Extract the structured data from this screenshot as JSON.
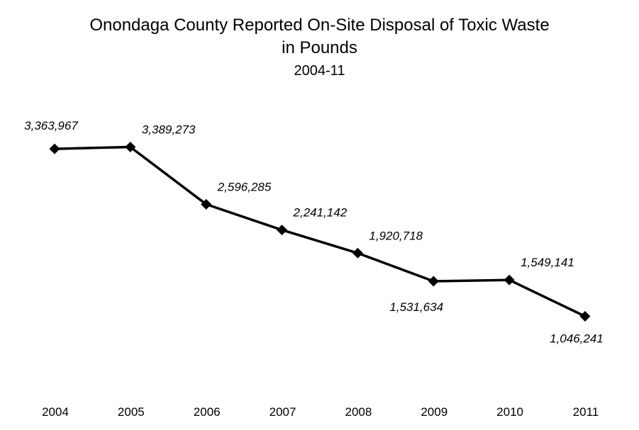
{
  "chart_data": {
    "type": "line",
    "title": "Onondaga County Reported On-Site Disposal of Toxic Waste",
    "title_line2": "in Pounds",
    "subtitle": "2004-11",
    "categories": [
      "2004",
      "2005",
      "2006",
      "2007",
      "2008",
      "2009",
      "2010",
      "2011"
    ],
    "series": [
      {
        "values": [
          3363967,
          3389273,
          2596285,
          2241142,
          1920718,
          1531634,
          1549141,
          1046241
        ]
      }
    ],
    "data_labels": [
      "3,363,967",
      "3,389,273",
      "2,596,285",
      "2,241,142",
      "1,920,718",
      "1,531,634",
      "1,549,141",
      "1,046,241"
    ],
    "label_positions": [
      "above",
      "above-right",
      "above-right",
      "above-right",
      "above-right",
      "below",
      "above-right",
      "below"
    ],
    "marker": "diamond",
    "line_color": "#000000",
    "xlabel": "",
    "ylabel": "",
    "grid": false,
    "legend": "none"
  }
}
